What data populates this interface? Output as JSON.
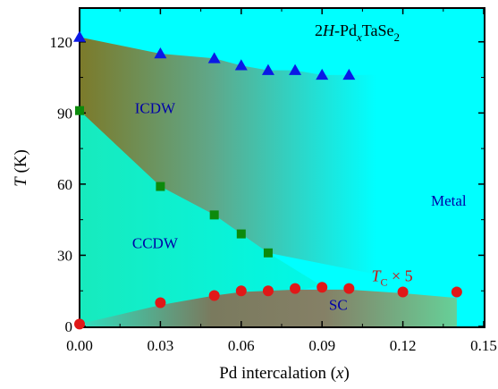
{
  "chart_data": {
    "type": "scatter",
    "title": "",
    "compound_label": {
      "prefix": "2",
      "italic_H": "H",
      "mid": "-Pd",
      "sub_x": "x",
      "tail": "TaSe",
      "sub_2": "2"
    },
    "xlabel": {
      "text": "Pd intercalation (",
      "var": "x",
      "close": ")"
    },
    "ylabel": {
      "var": "T",
      "unit": " (K)"
    },
    "xlim": [
      0,
      0.15
    ],
    "ylim": [
      0,
      135
    ],
    "xticks": [
      "0.00",
      "0.03",
      "0.06",
      "0.09",
      "0.12",
      "0.15"
    ],
    "xtick_values": [
      0,
      0.03,
      0.06,
      0.09,
      0.12,
      0.15
    ],
    "yticks": [
      "0",
      "30",
      "60",
      "90",
      "120"
    ],
    "ytick_values": [
      0,
      30,
      60,
      90,
      120
    ],
    "regions": [
      {
        "label": "ICDW",
        "x": 0.028,
        "y": 90
      },
      {
        "label": "CCDW",
        "x": 0.028,
        "y": 33
      },
      {
        "label": "Metal",
        "x": 0.137,
        "y": 51
      },
      {
        "label": "SC",
        "x": 0.096,
        "y": 7
      }
    ],
    "tc_label": {
      "italic_T": "T",
      "sub_c": "C",
      "tail": "  × 5",
      "x": 0.116,
      "y": 19
    },
    "series": [
      {
        "marker": "triangle",
        "color": "#0a19e6",
        "x": [
          0.0,
          0.03,
          0.05,
          0.06,
          0.07,
          0.08,
          0.09,
          0.1
        ],
        "y": [
          122,
          115,
          113,
          110,
          108,
          108,
          106,
          106
        ]
      },
      {
        "marker": "square",
        "color": "#0c8a0c",
        "x": [
          0.0,
          0.03,
          0.05,
          0.06,
          0.07
        ],
        "y": [
          91,
          59,
          47,
          39,
          31
        ]
      },
      {
        "marker": "circle",
        "color": "#e01818",
        "x": [
          0.0,
          0.03,
          0.05,
          0.06,
          0.07,
          0.08,
          0.09,
          0.1,
          0.12,
          0.14
        ],
        "y": [
          1,
          10,
          13,
          15,
          15,
          16,
          16.5,
          16,
          14.5,
          14.5
        ]
      }
    ],
    "colors": {
      "background": "#00ffff",
      "ccdw": "#20e8b0",
      "icdw_dark": "#7a7a2e",
      "sc_dark": "#7a7a5a",
      "sc_light": "#6acf9a"
    }
  }
}
